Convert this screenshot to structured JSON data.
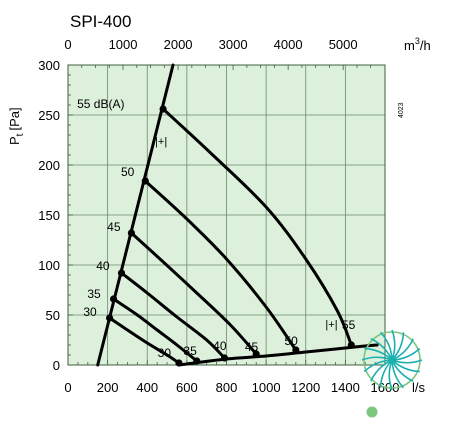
{
  "colors": {
    "plot_background": "#dcf0dc",
    "grid": "#6b8a6b",
    "curve": "#000000",
    "logo_teal": "#1ab0b0",
    "logo_green": "#7cc77c"
  },
  "logo": {
    "icon": "sunburst-logo-icon"
  },
  "chart_data": {
    "type": "line",
    "title": "SPI-400",
    "ylabel": "Pt [Pa]",
    "ylabel_main": "P",
    "ylabel_sub": "t",
    "ylabel_unit": "[Pa]",
    "xlabel_bottom": "l/s",
    "xlabel_top_base": "m",
    "xlabel_top_exp": "3",
    "xlabel_top_rest": "/h",
    "ref_code": "4023",
    "xlim": [
      0,
      1600
    ],
    "ylim": [
      0,
      300
    ],
    "x_ticks": [
      "0",
      "200",
      "400",
      "600",
      "800",
      "1000",
      "1200",
      "1400",
      "1600"
    ],
    "y_ticks": [
      "0",
      "50",
      "100",
      "150",
      "200",
      "250",
      "300"
    ],
    "top_ticks": [
      {
        "label": "0",
        "l_s": 0
      },
      {
        "label": "1000",
        "l_s": 277.8
      },
      {
        "label": "2000",
        "l_s": 555.6
      },
      {
        "label": "3000",
        "l_s": 833.3
      },
      {
        "label": "4000",
        "l_s": 1111.1
      },
      {
        "label": "5000",
        "l_s": 1388.9
      }
    ],
    "grid": true,
    "minimum_flow_line": {
      "name": "[+]",
      "points": [
        [
          150,
          0
        ],
        [
          530,
          300
        ]
      ]
    },
    "system_curve": {
      "name": "[+]",
      "points": [
        [
          560,
          0
        ],
        [
          800,
          6
        ],
        [
          1000,
          9
        ],
        [
          1200,
          13
        ],
        [
          1400,
          17
        ],
        [
          1500,
          19
        ],
        [
          1560,
          20
        ]
      ]
    },
    "series": [
      {
        "name": "30",
        "points": [
          [
            210,
            47
          ],
          [
            300,
            35
          ],
          [
            400,
            22
          ],
          [
            500,
            10
          ],
          [
            560,
            2
          ]
        ]
      },
      {
        "name": "35",
        "points": [
          [
            230,
            66
          ],
          [
            350,
            50
          ],
          [
            450,
            35
          ],
          [
            550,
            20
          ],
          [
            650,
            4
          ]
        ]
      },
      {
        "name": "40",
        "points": [
          [
            270,
            92
          ],
          [
            400,
            72
          ],
          [
            550,
            48
          ],
          [
            700,
            25
          ],
          [
            790,
            7
          ]
        ]
      },
      {
        "name": "45",
        "points": [
          [
            320,
            132
          ],
          [
            470,
            105
          ],
          [
            650,
            72
          ],
          [
            820,
            40
          ],
          [
            950,
            11
          ]
        ]
      },
      {
        "name": "50",
        "points": [
          [
            390,
            184
          ],
          [
            600,
            146
          ],
          [
            800,
            106
          ],
          [
            1000,
            58
          ],
          [
            1150,
            15
          ]
        ]
      },
      {
        "name": "55 dB(A)",
        "points": [
          [
            480,
            256
          ],
          [
            720,
            212
          ],
          [
            1000,
            158
          ],
          [
            1200,
            106
          ],
          [
            1360,
            54
          ],
          [
            1430,
            20
          ]
        ]
      }
    ],
    "curve_labels": [
      {
        "text": "55 dB(A)",
        "x": 285,
        "y": 257
      },
      {
        "text": "50",
        "x": 335,
        "y": 189
      },
      {
        "text": "45",
        "x": 265,
        "y": 134
      },
      {
        "text": "40",
        "x": 210,
        "y": 95
      },
      {
        "text": "35",
        "x": 165,
        "y": 67
      },
      {
        "text": "30",
        "x": 145,
        "y": 49
      },
      {
        "text": "30",
        "x": 520,
        "y": 8
      },
      {
        "text": "35",
        "x": 650,
        "y": 10
      },
      {
        "text": "40",
        "x": 800,
        "y": 15
      },
      {
        "text": "45",
        "x": 960,
        "y": 14
      },
      {
        "text": "50",
        "x": 1160,
        "y": 20
      },
      {
        "text": "55",
        "x": 1450,
        "y": 36
      }
    ],
    "marker_labels": [
      {
        "text": "|+|",
        "x": 470,
        "y": 220
      },
      {
        "text": "|+|",
        "x": 1330,
        "y": 37
      }
    ],
    "dots": [
      [
        480,
        256
      ],
      [
        390,
        184
      ],
      [
        320,
        132
      ],
      [
        270,
        92
      ],
      [
        230,
        66
      ],
      [
        210,
        47
      ],
      [
        1430,
        20
      ],
      [
        1150,
        15
      ],
      [
        950,
        11
      ],
      [
        790,
        7
      ],
      [
        650,
        4
      ],
      [
        560,
        2
      ]
    ]
  }
}
